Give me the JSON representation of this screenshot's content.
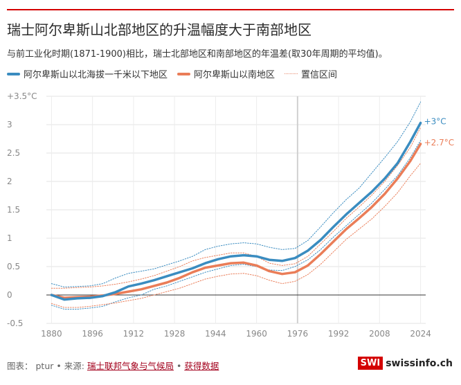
{
  "title": "瑞士阿尔卑斯山北部地区的升温幅度大于南部地区",
  "subtitle": "与前工业化时期(1871-1900)相比，瑞士北部地区和南部地区的年温差(取30年周期的平均值)。",
  "legend": {
    "north": "阿尔卑斯山以北海拔一千米以下地区",
    "south": "阿尔卑斯山以南地区",
    "ci": "置信区间"
  },
  "footer": {
    "chart_label": "图表：",
    "author": "ptur",
    "sep1": "•",
    "source_label": "来源:",
    "source": "瑞士联邦气象与气候局",
    "sep2": "•",
    "get_data": "获得数据"
  },
  "brand": {
    "box": "SWI",
    "text": "swissinfo.ch"
  },
  "colors": {
    "north": "#3a8cc0",
    "south": "#ea7d58",
    "accent": "#d40000"
  },
  "chart_data": {
    "type": "line",
    "x_ticks": [
      "1880",
      "1896",
      "1912",
      "1928",
      "1944",
      "1960",
      "1976",
      "1992",
      "2008",
      "2024"
    ],
    "y_ticks": [
      "+3.5°C",
      "3",
      "2.5",
      "2",
      "1.5",
      "1",
      "0.5",
      "0",
      "-0.5"
    ],
    "xlim": [
      1878,
      2026
    ],
    "ylim": [
      -0.5,
      3.5
    ],
    "highlight_year": 1976,
    "grid": true,
    "end_labels": {
      "north": "+3°C",
      "south": "+2.7°C"
    },
    "series": [
      {
        "name": "阿尔卑斯山以北海拔一千米以下地区",
        "key": "north",
        "x": [
          1880,
          1885,
          1890,
          1895,
          1900,
          1905,
          1910,
          1915,
          1920,
          1925,
          1930,
          1935,
          1940,
          1945,
          1950,
          1955,
          1960,
          1965,
          1970,
          1975,
          1980,
          1985,
          1990,
          1995,
          2000,
          2005,
          2010,
          2015,
          2020,
          2024
        ],
        "y": [
          0.0,
          -0.08,
          -0.06,
          -0.05,
          -0.02,
          0.05,
          0.15,
          0.2,
          0.26,
          0.33,
          0.4,
          0.47,
          0.56,
          0.63,
          0.68,
          0.7,
          0.68,
          0.62,
          0.6,
          0.65,
          0.78,
          0.97,
          1.2,
          1.42,
          1.62,
          1.82,
          2.05,
          2.32,
          2.7,
          3.03
        ],
        "ci_upper": [
          0.2,
          0.14,
          0.15,
          0.16,
          0.2,
          0.3,
          0.38,
          0.42,
          0.46,
          0.53,
          0.6,
          0.68,
          0.8,
          0.86,
          0.9,
          0.92,
          0.9,
          0.84,
          0.8,
          0.82,
          0.96,
          1.2,
          1.45,
          1.68,
          1.88,
          2.15,
          2.42,
          2.7,
          3.05,
          3.4
        ],
        "ci_lower": [
          -0.18,
          -0.25,
          -0.25,
          -0.23,
          -0.2,
          -0.12,
          -0.05,
          0.0,
          0.1,
          0.16,
          0.24,
          0.32,
          0.4,
          0.46,
          0.52,
          0.54,
          0.5,
          0.44,
          0.43,
          0.5,
          0.62,
          0.8,
          1.02,
          1.22,
          1.42,
          1.62,
          1.86,
          2.1,
          2.42,
          2.72
        ]
      },
      {
        "name": "阿尔卑斯山以南地区",
        "key": "south",
        "x": [
          1880,
          1885,
          1890,
          1895,
          1900,
          1905,
          1910,
          1915,
          1920,
          1925,
          1930,
          1935,
          1940,
          1945,
          1950,
          1955,
          1960,
          1965,
          1970,
          1975,
          1980,
          1985,
          1990,
          1995,
          2000,
          2005,
          2010,
          2015,
          2020,
          2024
        ],
        "y": [
          0.0,
          -0.05,
          -0.04,
          -0.03,
          -0.01,
          0.02,
          0.06,
          0.1,
          0.16,
          0.22,
          0.3,
          0.4,
          0.48,
          0.52,
          0.56,
          0.57,
          0.52,
          0.42,
          0.37,
          0.4,
          0.52,
          0.72,
          0.94,
          1.16,
          1.35,
          1.55,
          1.78,
          2.05,
          2.36,
          2.66
        ],
        "ci_upper": [
          0.12,
          0.12,
          0.13,
          0.14,
          0.16,
          0.19,
          0.23,
          0.28,
          0.34,
          0.42,
          0.5,
          0.6,
          0.66,
          0.7,
          0.74,
          0.74,
          0.68,
          0.56,
          0.52,
          0.55,
          0.68,
          0.9,
          1.12,
          1.35,
          1.55,
          1.76,
          2.0,
          2.28,
          2.6,
          2.95
        ],
        "ci_lower": [
          -0.15,
          -0.22,
          -0.22,
          -0.2,
          -0.17,
          -0.14,
          -0.1,
          -0.06,
          0.0,
          0.06,
          0.12,
          0.2,
          0.28,
          0.33,
          0.37,
          0.38,
          0.34,
          0.26,
          0.2,
          0.24,
          0.36,
          0.54,
          0.76,
          0.98,
          1.16,
          1.34,
          1.56,
          1.8,
          2.1,
          2.32
        ]
      }
    ]
  }
}
